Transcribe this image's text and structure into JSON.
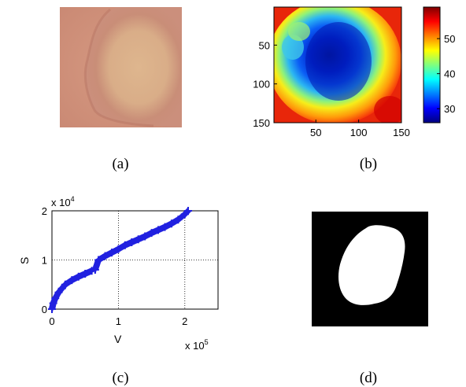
{
  "figure": {
    "panels": [
      {
        "id": "a",
        "caption": "(a)",
        "content": "wound photograph"
      },
      {
        "id": "b",
        "caption": "(b)",
        "content": "pseudocolor heatmap with colorbar"
      },
      {
        "id": "c",
        "caption": "(c)",
        "content": "scatter plot S vs V"
      },
      {
        "id": "d",
        "caption": "(d)",
        "content": "binary segmentation mask"
      }
    ]
  },
  "chart_data": [
    {
      "panel": "b",
      "type": "heatmap",
      "colormap": "jet",
      "x_ticks": [
        "50",
        "100",
        "150"
      ],
      "y_ticks": [
        "50",
        "100",
        "150"
      ],
      "xlim": [
        1,
        150
      ],
      "ylim": [
        1,
        150
      ],
      "colorbar_ticks": [
        "30",
        "40",
        "50"
      ],
      "colorbar_range": [
        26,
        59
      ],
      "grid": false
    },
    {
      "panel": "c",
      "type": "scatter",
      "xlabel": "V",
      "ylabel": "S",
      "x_multiplier": "x 10",
      "x_exponent": "5",
      "y_multiplier": "x 10",
      "y_exponent": "4",
      "x_ticks": [
        "0",
        "1",
        "2"
      ],
      "y_ticks": [
        "0",
        "1",
        "2"
      ],
      "xlim": [
        0,
        250000
      ],
      "ylim": [
        0,
        20000
      ],
      "grid": true,
      "marker": "+",
      "color": "#2020e0",
      "series": [
        {
          "x": [
            0,
            2000,
            5000,
            10000,
            15000,
            20000,
            30000,
            40000,
            50000,
            60000,
            65000,
            70000,
            80000,
            90000,
            100000,
            110000,
            120000,
            130000,
            140000,
            150000,
            160000,
            170000,
            180000,
            190000,
            200000,
            205000
          ],
          "y": [
            0,
            1200,
            2200,
            3400,
            4200,
            5000,
            5900,
            6600,
            7200,
            7800,
            8000,
            10000,
            10800,
            11500,
            12200,
            13000,
            13600,
            14200,
            14800,
            15500,
            16100,
            16700,
            17400,
            18200,
            19300,
            20000
          ]
        }
      ]
    }
  ]
}
